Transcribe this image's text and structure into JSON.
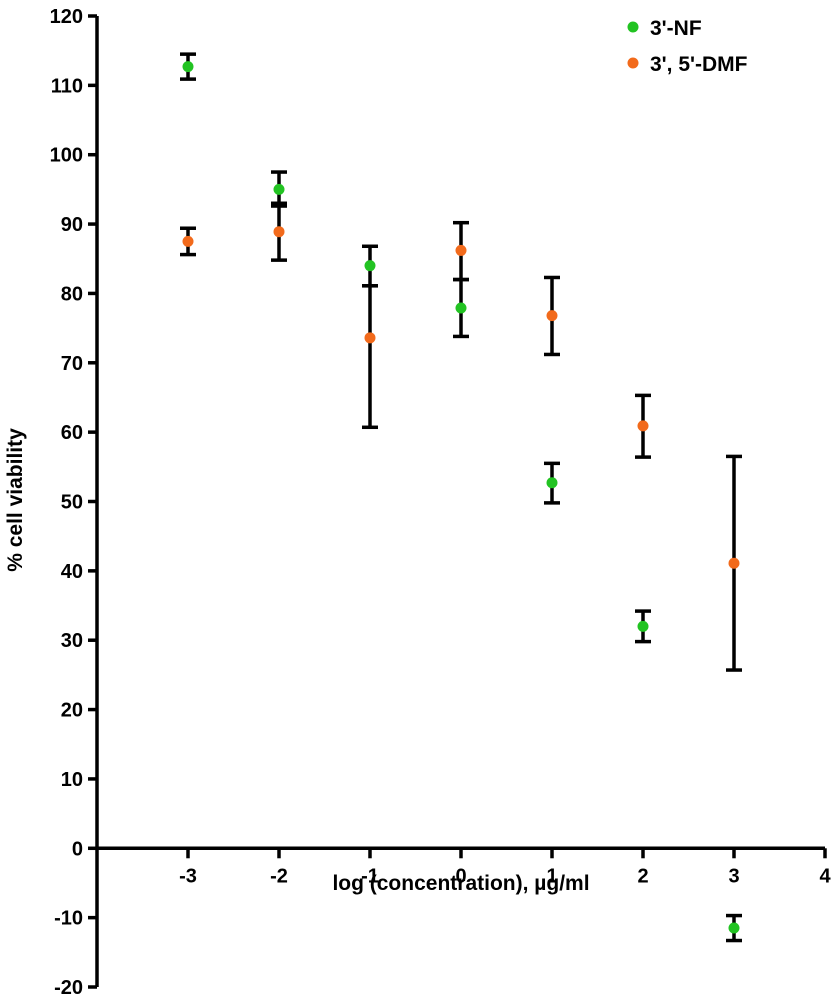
{
  "chart_data": {
    "type": "scatter",
    "title": "",
    "xlabel": "log (concentration), µg/ml",
    "ylabel": "% cell viability",
    "xlim": [
      -4,
      4
    ],
    "ylim": [
      -20,
      120
    ],
    "xticks": [
      -3,
      -2,
      -1,
      0,
      1,
      2,
      3,
      4
    ],
    "yticks": [
      -20,
      -10,
      0,
      10,
      20,
      30,
      40,
      50,
      60,
      70,
      80,
      90,
      100,
      110,
      120
    ],
    "grid": false,
    "legend_position": "top-right",
    "error_bars": true,
    "series": [
      {
        "name": "3'-NF",
        "color": "#22c322",
        "points": [
          {
            "x": -3,
            "y": 112.7,
            "low": 110.9,
            "high": 114.5
          },
          {
            "x": -2,
            "y": 95.0,
            "low": 92.6,
            "high": 97.5
          },
          {
            "x": -1,
            "y": 84.0,
            "low": 81.1,
            "high": 86.8
          },
          {
            "x": 0,
            "y": 77.9,
            "low": 73.8,
            "high": 82.0
          },
          {
            "x": 1,
            "y": 52.7,
            "low": 49.8,
            "high": 55.5
          },
          {
            "x": 2,
            "y": 32.0,
            "low": 29.8,
            "high": 34.2
          },
          {
            "x": 3,
            "y": -11.5,
            "low": -13.3,
            "high": -9.7
          }
        ]
      },
      {
        "name": "3', 5'-DMF",
        "color": "#f26a1b",
        "points": [
          {
            "x": -3,
            "y": 87.5,
            "low": 85.6,
            "high": 89.4
          },
          {
            "x": -2,
            "y": 88.9,
            "low": 84.8,
            "high": 93.0
          },
          {
            "x": -1,
            "y": 73.6,
            "low": 60.7,
            "high": 81.1
          },
          {
            "x": 0,
            "y": 86.2,
            "low": 82.0,
            "high": 90.2
          },
          {
            "x": 1,
            "y": 76.8,
            "low": 71.2,
            "high": 82.3
          },
          {
            "x": 2,
            "y": 60.9,
            "low": 56.4,
            "high": 65.3
          },
          {
            "x": 3,
            "y": 41.1,
            "low": 25.7,
            "high": 56.5
          }
        ]
      }
    ]
  }
}
